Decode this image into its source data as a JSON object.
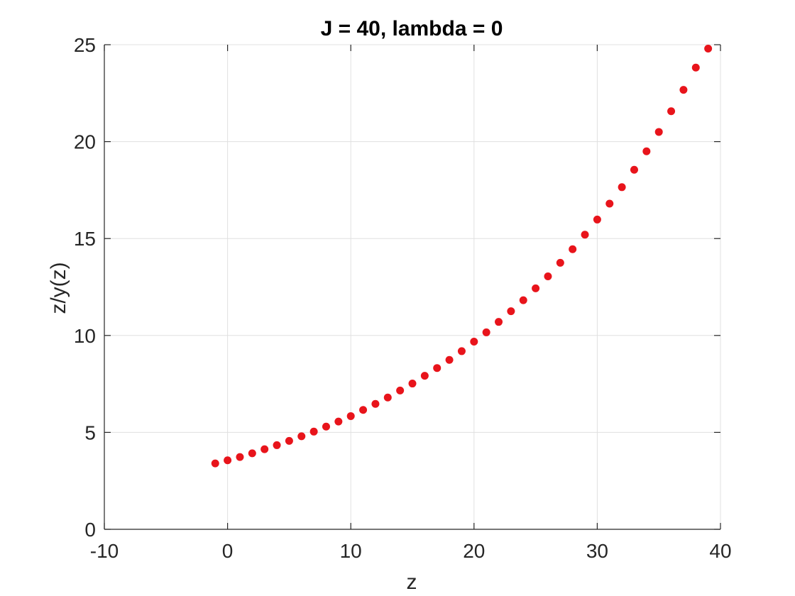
{
  "chart_data": {
    "type": "scatter",
    "title": "J = 40, lambda = 0",
    "xlabel": "z",
    "ylabel": "z/y(z)",
    "xlim": [
      -10,
      40
    ],
    "ylim": [
      0,
      25
    ],
    "xticks": [
      -10,
      0,
      10,
      20,
      30,
      40
    ],
    "yticks": [
      0,
      5,
      10,
      15,
      20,
      25
    ],
    "grid": true,
    "legend": "none",
    "marker_color": "#e8141b",
    "series": [
      {
        "x": [
          -1,
          0,
          1,
          2,
          3,
          4,
          5,
          6,
          7,
          8,
          9,
          10,
          11,
          12,
          13,
          14,
          15,
          16,
          17,
          18,
          19,
          20,
          21,
          22,
          23,
          24,
          25,
          26,
          27,
          28,
          29,
          30,
          31,
          32,
          33,
          34,
          35,
          36,
          37,
          38,
          39
        ],
        "y": [
          3.4,
          3.56,
          3.73,
          3.92,
          4.13,
          4.34,
          4.56,
          4.8,
          5.04,
          5.3,
          5.56,
          5.84,
          6.16,
          6.47,
          6.8,
          7.16,
          7.52,
          7.92,
          8.32,
          8.74,
          9.19,
          9.68,
          10.16,
          10.7,
          11.25,
          11.82,
          12.43,
          13.05,
          13.75,
          14.45,
          15.2,
          15.98,
          16.8,
          17.65,
          18.55,
          19.5,
          20.5,
          21.57,
          22.67,
          23.82,
          24.8
        ]
      }
    ]
  }
}
